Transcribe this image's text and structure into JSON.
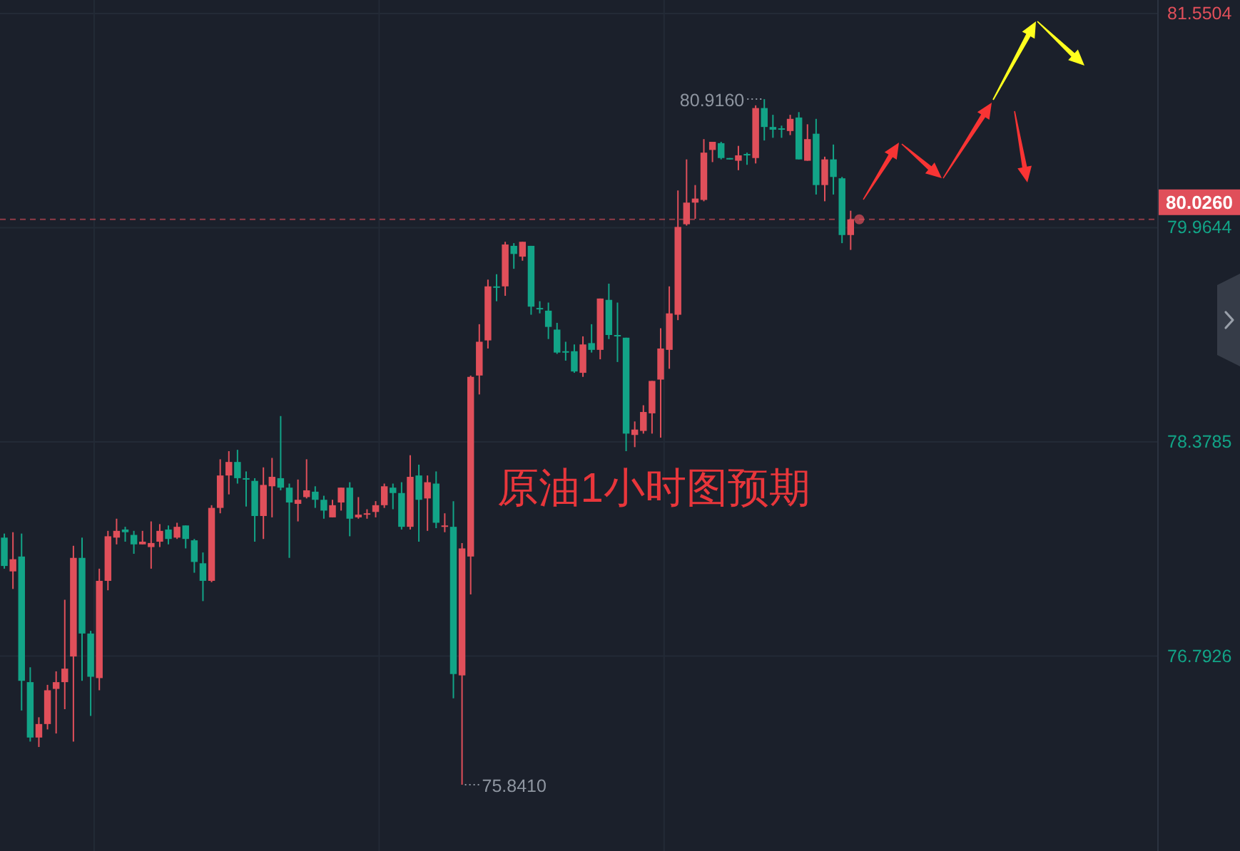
{
  "chart_data": {
    "type": "candlestick",
    "categories": [
      null,
      null,
      null,
      null,
      null,
      null,
      null,
      null,
      null,
      null,
      null,
      null,
      null,
      null,
      null,
      null,
      null,
      null,
      null,
      null,
      null,
      null,
      null,
      null,
      null,
      null,
      null,
      null,
      null,
      null,
      null,
      null,
      null,
      null,
      null,
      null,
      null,
      null,
      null,
      null,
      null,
      null,
      null,
      null,
      null,
      null,
      null,
      null,
      null,
      null,
      null,
      null,
      null,
      null,
      null,
      null,
      null,
      null,
      null,
      null,
      null,
      null,
      null,
      null,
      null,
      null,
      null,
      null,
      null,
      null,
      null,
      null,
      null,
      null,
      null,
      null,
      null,
      null,
      null,
      null,
      null,
      null,
      null,
      null,
      null,
      null,
      null,
      null,
      null,
      null,
      null,
      null,
      null,
      null,
      null,
      null,
      null,
      null,
      null,
      null,
      null,
      null,
      null,
      null,
      null,
      null,
      null,
      null,
      null,
      null,
      null,
      null,
      null,
      null,
      null,
      null,
      null,
      null,
      null,
      null,
      null,
      null,
      null,
      null,
      null,
      null,
      null,
      null,
      null,
      null,
      null,
      null,
      null,
      null
    ],
    "ohlc": [
      [
        77.67,
        77.7,
        77.44,
        77.46
      ],
      [
        77.42,
        77.71,
        77.29,
        77.51
      ],
      [
        77.53,
        77.7,
        76.39,
        76.61
      ],
      [
        76.6,
        76.71,
        76.16,
        76.19
      ],
      [
        76.19,
        76.34,
        76.12,
        76.29
      ],
      [
        76.29,
        76.58,
        76.25,
        76.54
      ],
      [
        76.55,
        76.68,
        76.22,
        76.6
      ],
      [
        76.6,
        77.21,
        76.4,
        76.7
      ],
      [
        76.79,
        77.61,
        76.16,
        77.52
      ],
      [
        77.52,
        77.67,
        76.61,
        76.96
      ],
      [
        76.96,
        76.98,
        76.35,
        76.64
      ],
      [
        76.63,
        77.44,
        76.54,
        77.35
      ],
      [
        77.35,
        77.72,
        77.28,
        77.68
      ],
      [
        77.67,
        77.81,
        77.62,
        77.72
      ],
      [
        77.73,
        77.75,
        77.64,
        77.71
      ],
      [
        77.69,
        77.72,
        77.55,
        77.62
      ],
      [
        77.62,
        77.72,
        77.62,
        77.64
      ],
      [
        77.6,
        77.79,
        77.44,
        77.63
      ],
      [
        77.64,
        77.77,
        77.6,
        77.72
      ],
      [
        77.73,
        77.76,
        77.62,
        77.66
      ],
      [
        77.67,
        77.78,
        77.66,
        77.75
      ],
      [
        77.76,
        77.76,
        77.59,
        77.66
      ],
      [
        77.65,
        77.66,
        77.41,
        77.49
      ],
      [
        77.48,
        77.56,
        77.2,
        77.35
      ],
      [
        77.35,
        77.91,
        77.34,
        77.89
      ],
      [
        77.89,
        78.25,
        77.85,
        78.13
      ],
      [
        78.13,
        78.31,
        77.99,
        78.23
      ],
      [
        78.23,
        78.32,
        78.07,
        78.11
      ],
      [
        78.11,
        78.16,
        77.9,
        78.1
      ],
      [
        78.09,
        78.11,
        77.64,
        77.83
      ],
      [
        77.83,
        78.19,
        77.66,
        78.06
      ],
      [
        78.05,
        78.26,
        77.82,
        78.12
      ],
      [
        78.11,
        78.57,
        78.02,
        78.04
      ],
      [
        78.04,
        78.07,
        77.52,
        77.93
      ],
      [
        77.92,
        78.1,
        77.79,
        77.95
      ],
      [
        77.97,
        78.25,
        77.96,
        78.02
      ],
      [
        78.01,
        78.05,
        77.89,
        77.95
      ],
      [
        77.95,
        77.98,
        77.81,
        77.87
      ],
      [
        77.82,
        77.95,
        77.82,
        77.91
      ],
      [
        77.93,
        78.04,
        77.87,
        78.04
      ],
      [
        78.04,
        78.08,
        77.68,
        77.81
      ],
      [
        77.82,
        77.97,
        77.81,
        77.84
      ],
      [
        77.84,
        77.88,
        77.81,
        77.85
      ],
      [
        77.86,
        77.94,
        77.82,
        77.91
      ],
      [
        77.91,
        78.07,
        77.89,
        78.05
      ],
      [
        78.04,
        78.07,
        77.88,
        78.0
      ],
      [
        78.0,
        78.08,
        77.73,
        77.75
      ],
      [
        77.75,
        78.28,
        77.73,
        78.12
      ],
      [
        78.13,
        78.21,
        77.64,
        77.95
      ],
      [
        77.96,
        78.13,
        77.72,
        78.08
      ],
      [
        78.07,
        78.16,
        77.74,
        77.78
      ],
      [
        77.75,
        77.85,
        77.71,
        77.76
      ],
      [
        77.75,
        77.94,
        76.48,
        76.66
      ],
      [
        76.65,
        77.63,
        75.841,
        77.59
      ],
      [
        77.53,
        78.87,
        77.25,
        78.86
      ],
      [
        78.87,
        79.25,
        78.73,
        79.12
      ],
      [
        79.13,
        79.58,
        79.07,
        79.53
      ],
      [
        79.53,
        79.62,
        79.42,
        79.52
      ],
      [
        79.53,
        79.86,
        79.46,
        79.84
      ],
      [
        79.83,
        79.85,
        79.66,
        79.77
      ],
      [
        79.75,
        79.86,
        79.72,
        79.86
      ],
      [
        79.83,
        79.83,
        79.32,
        79.38
      ],
      [
        79.37,
        79.42,
        79.33,
        79.36
      ],
      [
        79.35,
        79.41,
        79.14,
        79.23
      ],
      [
        79.21,
        79.26,
        79.03,
        79.04
      ],
      [
        79.05,
        79.12,
        78.98,
        79.04
      ],
      [
        79.05,
        79.1,
        78.89,
        78.9
      ],
      [
        78.89,
        79.16,
        78.86,
        79.1
      ],
      [
        79.11,
        79.25,
        79.04,
        79.06
      ],
      [
        79.06,
        79.44,
        78.99,
        79.44
      ],
      [
        79.43,
        79.55,
        79.14,
        79.17
      ],
      [
        79.17,
        79.41,
        78.97,
        79.16
      ],
      [
        79.15,
        79.15,
        78.31,
        78.44
      ],
      [
        78.43,
        78.53,
        78.34,
        78.47
      ],
      [
        78.46,
        78.65,
        78.44,
        78.6
      ],
      [
        78.59,
        78.83,
        78.44,
        78.83
      ],
      [
        78.84,
        79.22,
        78.41,
        79.07
      ],
      [
        79.06,
        79.53,
        78.92,
        79.33
      ],
      [
        79.32,
        80.24,
        79.28,
        79.97
      ],
      [
        79.99,
        80.47,
        79.98,
        80.15
      ],
      [
        80.15,
        80.28,
        80.03,
        80.18
      ],
      [
        80.17,
        80.62,
        80.16,
        80.52
      ],
      [
        80.54,
        80.6,
        80.45,
        80.6
      ],
      [
        80.59,
        80.6,
        80.47,
        80.48
      ],
      [
        80.48,
        80.48,
        80.47,
        80.47
      ],
      [
        80.46,
        80.57,
        80.39,
        80.5
      ],
      [
        80.51,
        80.52,
        80.43,
        80.5
      ],
      [
        80.48,
        80.87,
        80.44,
        80.85
      ],
      [
        80.85,
        80.916,
        80.61,
        80.71
      ],
      [
        80.71,
        80.8,
        80.63,
        80.69
      ],
      [
        80.7,
        80.72,
        80.63,
        80.69
      ],
      [
        80.68,
        80.8,
        80.65,
        80.77
      ],
      [
        80.78,
        80.82,
        80.47,
        80.47
      ],
      [
        80.46,
        80.73,
        80.46,
        80.62
      ],
      [
        80.66,
        80.77,
        80.21,
        80.28
      ],
      [
        80.28,
        80.49,
        80.16,
        80.47
      ],
      [
        80.47,
        80.58,
        80.21,
        80.34
      ],
      [
        80.33,
        80.34,
        79.85,
        79.91
      ],
      [
        79.91,
        80.09,
        79.8,
        80.026
      ],
      null,
      null,
      null,
      null,
      null,
      null,
      null,
      null,
      null,
      null,
      null,
      null,
      null,
      null,
      null,
      null,
      null,
      null,
      null,
      null,
      null,
      null,
      null,
      null,
      null,
      null,
      null,
      null,
      null,
      null,
      null,
      null,
      null,
      null,
      null
    ],
    "colors": [
      "#12a487",
      "#e04f5a",
      "#12a487",
      "#12a487",
      "#e04f5a",
      "#e04f5a",
      "#e04f5a",
      "#e04f5a",
      "#e04f5a",
      "#12a487",
      "#12a487",
      "#e04f5a",
      "#e04f5a",
      "#e04f5a",
      "#12a487",
      "#12a487",
      "#e04f5a",
      "#e04f5a",
      "#e04f5a",
      "#12a487",
      "#e04f5a",
      "#12a487",
      "#12a487",
      "#12a487",
      "#e04f5a",
      "#e04f5a",
      "#e04f5a",
      "#12a487",
      "#12a487",
      "#12a487",
      "#e04f5a",
      "#e04f5a",
      "#12a487",
      "#12a487",
      "#e04f5a",
      "#e04f5a",
      "#12a487",
      "#12a487",
      "#e04f5a",
      "#e04f5a",
      "#12a487",
      "#e04f5a",
      "#e04f5a",
      "#e04f5a",
      "#e04f5a",
      "#12a487",
      "#12a487",
      "#e04f5a",
      "#12a487",
      "#e04f5a",
      "#12a487",
      "#e04f5a",
      "#12a487",
      "#e04f5a",
      "#e04f5a",
      "#e04f5a",
      "#e04f5a",
      "#12a487",
      "#e04f5a",
      "#12a487",
      "#e04f5a",
      "#12a487",
      "#12a487",
      "#12a487",
      "#12a487",
      "#12a487",
      "#12a487",
      "#e04f5a",
      "#12a487",
      "#e04f5a",
      "#12a487",
      "#12a487",
      "#12a487",
      "#e04f5a",
      "#e04f5a",
      "#e04f5a",
      "#e04f5a",
      "#e04f5a",
      "#e04f5a",
      "#e04f5a",
      "#e04f5a",
      "#e04f5a",
      "#e04f5a",
      "#12a487",
      "#12a487",
      "#e04f5a",
      "#12a487",
      "#e04f5a",
      "#12a487",
      "#12a487",
      "#12a487",
      "#e04f5a",
      "#12a487",
      "#e04f5a",
      "#12a487",
      "#e04f5a",
      "#12a487",
      "#12a487",
      "#e04f5a",
      null,
      null,
      null,
      null,
      null,
      null,
      null,
      null,
      null,
      null,
      null,
      null,
      null,
      null,
      null,
      null,
      null,
      null,
      null,
      null,
      null,
      null,
      null,
      null,
      null,
      null,
      null,
      null,
      null,
      null,
      null,
      null,
      null,
      null,
      null
    ],
    "ylim": [
      75.35,
      81.65
    ],
    "yticks": [
      76.7926,
      78.3785,
      79.9644,
      81.5504
    ],
    "grid": true,
    "tick_labels": "y",
    "ref_lines": [
      {
        "axis": "y",
        "value": 80.026,
        "label": "80.0260",
        "color": "#e04f5a",
        "line_style": "dashed"
      }
    ],
    "annotations": [
      "80.9160",
      "75.8410",
      "原油1小时图预期"
    ]
  }
}
